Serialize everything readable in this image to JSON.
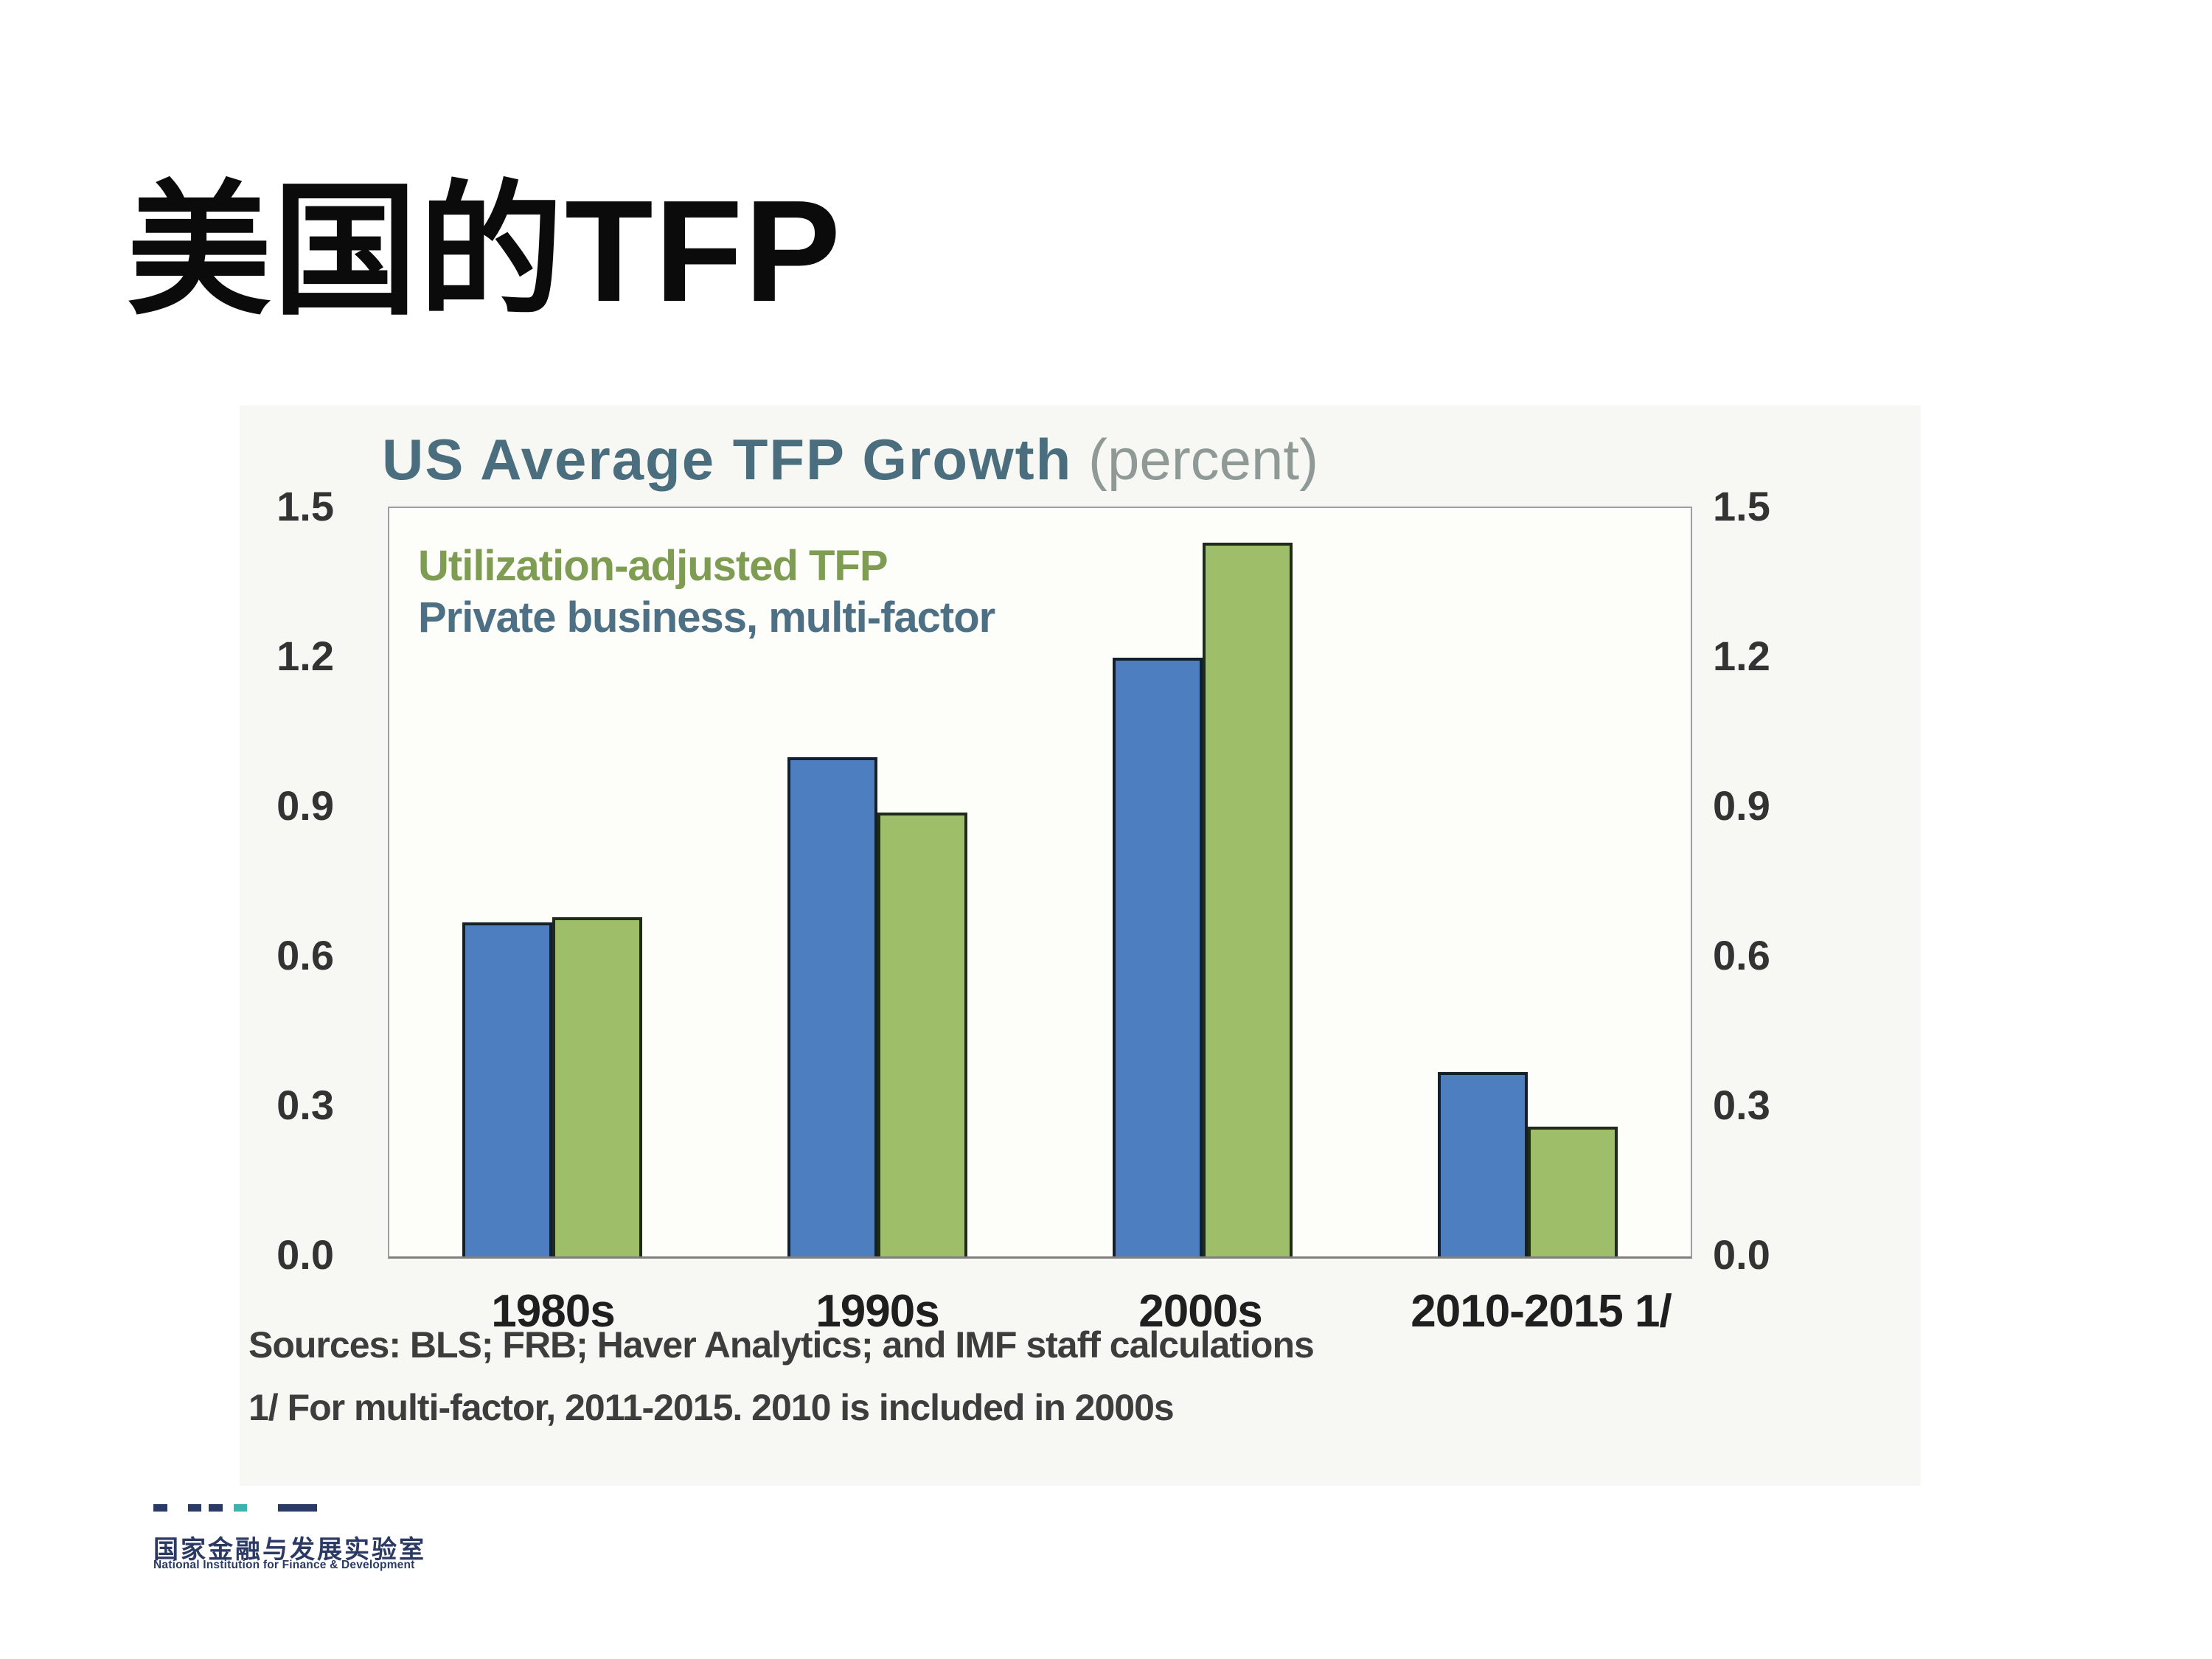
{
  "slide": {
    "title": "美国的TFP"
  },
  "chart": {
    "title": "US Average TFP Growth",
    "title_suffix": " (percent)",
    "title_color": "#4a6e7e",
    "legend": [
      {
        "label": "Utilization-adjusted TFP",
        "color": "#7e9d52"
      },
      {
        "label": "Private business, multi-factor",
        "color": "#4e7085"
      }
    ],
    "source_line1": "Sources: BLS; FRB; Haver Analytics; and IMF staff calculations",
    "source_line2": "1/ For multi-factor, 2011-2015. 2010 is included in 2000s"
  },
  "chart_data": {
    "type": "bar",
    "title": "US Average TFP Growth (percent)",
    "categories": [
      "1980s",
      "1990s",
      "2000s",
      "2010-2015 1/"
    ],
    "series": [
      {
        "name": "Private business, multi-factor",
        "color": "#4d7fc0",
        "values": [
          0.67,
          1.0,
          1.2,
          0.37
        ]
      },
      {
        "name": "Utilization-adjusted TFP",
        "color": "#9fbe6a",
        "values": [
          0.68,
          0.89,
          1.43,
          0.26
        ]
      }
    ],
    "ylim": [
      0,
      1.5
    ],
    "yticks": [
      0.0,
      0.3,
      0.6,
      0.9,
      1.2,
      1.5
    ],
    "y_axis": "left and right, mirrored",
    "grid": false,
    "legend_position": "top-left inside plot area"
  },
  "logo": {
    "cn": "国家金融与发展实验室",
    "en": "National Institution for Finance & Development",
    "dash_color": "#2b3a64",
    "dash_accent_color": "#3cb3ac"
  }
}
